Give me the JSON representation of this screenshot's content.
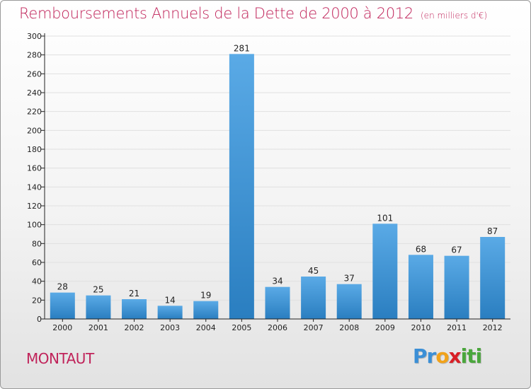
{
  "page": {
    "title": "Remboursements Annuels de la Dette de 2000 à 2012",
    "subtitle": "(en milliers d'€)",
    "city": "MONTAUT",
    "logo": {
      "text": "Proxiti",
      "letters": [
        {
          "char": "P",
          "color": "#3b8fd6"
        },
        {
          "char": "r",
          "color": "#3b8fd6"
        },
        {
          "char": "o",
          "color": "#f1a21a"
        },
        {
          "char": "x",
          "color": "#d81f26"
        },
        {
          "char": "i",
          "color": "#4aa63c"
        },
        {
          "char": "t",
          "color": "#4aa63c"
        },
        {
          "char": "i",
          "color": "#4aa63c"
        }
      ]
    }
  },
  "chart_data": {
    "type": "bar",
    "title": "Remboursements Annuels de la Dette de 2000 à 2012",
    "subtitle": "(en milliers d'€)",
    "categories": [
      "2000",
      "2001",
      "2002",
      "2003",
      "2004",
      "2005",
      "2006",
      "2007",
      "2008",
      "2009",
      "2010",
      "2011",
      "2012"
    ],
    "values": [
      28,
      25,
      21,
      14,
      19,
      281,
      34,
      45,
      37,
      101,
      68,
      67,
      87
    ],
    "ylim": [
      0,
      300
    ],
    "yticks": [
      0,
      20,
      40,
      60,
      80,
      100,
      120,
      140,
      160,
      180,
      200,
      220,
      240,
      260,
      280,
      300
    ],
    "grid": true,
    "colors": {
      "bar_top": "#5aaae6",
      "bar_bottom": "#2a7ec0",
      "grid": "#e0e0e0",
      "axis": "#222222"
    }
  }
}
